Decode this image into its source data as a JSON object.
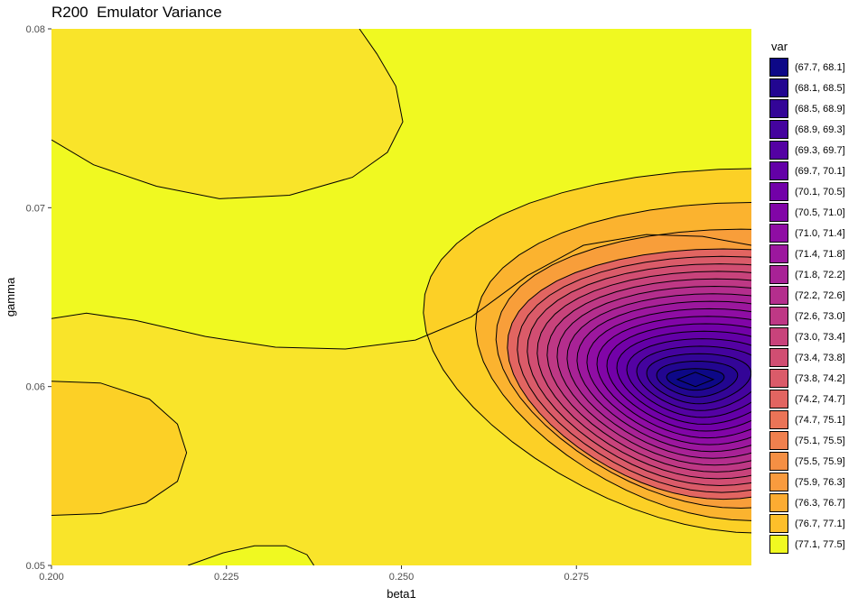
{
  "chart_data": {
    "type": "contour",
    "title": "R200  Emulator Variance",
    "xlabel": "beta1",
    "ylabel": "gamma",
    "xlim": [
      0.2,
      0.3
    ],
    "ylim": [
      0.05,
      0.08
    ],
    "x_ticks": [
      "0.200",
      "0.225",
      "0.250",
      "0.275"
    ],
    "y_ticks": [
      "0.05",
      "0.06",
      "0.07",
      "0.08"
    ],
    "grid": false,
    "legend_position": "right",
    "legend": {
      "title": "var",
      "bins": [
        {
          "label": "(67.7, 68.1]",
          "color": "#0d0887"
        },
        {
          "label": "(68.1, 68.5]",
          "color": "#220690"
        },
        {
          "label": "(68.5, 68.9]",
          "color": "#330597"
        },
        {
          "label": "(68.9, 69.3]",
          "color": "#44039e"
        },
        {
          "label": "(69.3, 69.7]",
          "color": "#5402a3"
        },
        {
          "label": "(69.7, 70.1]",
          "color": "#6300a7"
        },
        {
          "label": "(70.1, 70.5]",
          "color": "#7201a8"
        },
        {
          "label": "(70.5, 71.0]",
          "color": "#8105a7"
        },
        {
          "label": "(71.0, 71.4]",
          "color": "#8f0da4"
        },
        {
          "label": "(71.4, 71.8]",
          "color": "#9c179e"
        },
        {
          "label": "(71.8, 72.2]",
          "color": "#a82296"
        },
        {
          "label": "(72.2, 72.6]",
          "color": "#b42e8d"
        },
        {
          "label": "(72.6, 73.0]",
          "color": "#be3885"
        },
        {
          "label": "(73.0, 73.4]",
          "color": "#c8437b"
        },
        {
          "label": "(73.4, 73.8]",
          "color": "#d14e72"
        },
        {
          "label": "(73.8, 74.2]",
          "color": "#da5b69"
        },
        {
          "label": "(74.2, 74.7]",
          "color": "#e26561"
        },
        {
          "label": "(74.7, 75.1]",
          "color": "#ea7457"
        },
        {
          "label": "(75.1, 75.5]",
          "color": "#f0804e"
        },
        {
          "label": "(75.5, 75.9]",
          "color": "#f58f44"
        },
        {
          "label": "(75.9, 76.3]",
          "color": "#f99b3e"
        },
        {
          "label": "(76.3, 76.7]",
          "color": "#fcac32"
        },
        {
          "label": "(76.7, 77.1]",
          "color": "#fdbf2a"
        },
        {
          "label": "(77.1, 77.5]",
          "color": "#f0f921"
        }
      ]
    },
    "fill_colors": {
      "band_76_3": "#fcd026",
      "band_76_7": "#f9e42a",
      "band_77_1": "#f0f921",
      "band_75_9": "#fbb32f",
      "band_75_5": "#f89e3a"
    },
    "minimum_point": {
      "beta1": 0.292,
      "gamma": 0.0604,
      "bin": "(67.7, 68.1]"
    },
    "peak_regions": [
      {
        "beta1": 0.23,
        "gamma": 0.0775
      },
      {
        "beta1": 0.2,
        "gamma": 0.0565
      }
    ]
  }
}
